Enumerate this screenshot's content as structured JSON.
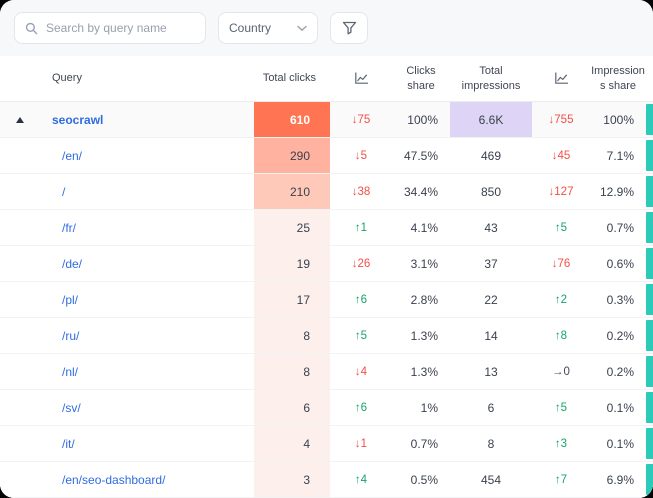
{
  "toolbar": {
    "search_placeholder": "Search by query name",
    "country_label": "Country",
    "search_icon": "magnifier",
    "country_chevron_icon": "chevron-down",
    "filter_icon": "funnel"
  },
  "table": {
    "headers": {
      "query": "Query",
      "total_clicks": "Total clicks",
      "clicks_trend_icon": "chart-icon",
      "clicks_share": "Clicks share",
      "total_impressions": "Total impressions",
      "impressions_trend_icon": "chart-icon",
      "impressions_share": "Impressions share"
    },
    "rows": [
      {
        "query": "seocrawl",
        "parent": true,
        "expanded": true,
        "clicks": "610",
        "heat": "strong",
        "clicks_change": "↓75",
        "clicks_dir": "down",
        "clicks_share": "100%",
        "impressions": "6.6K",
        "impr_highlight": true,
        "impr_change": "↓755",
        "impr_dir": "down",
        "impr_share": "100%"
      },
      {
        "query": "/en/",
        "clicks": "290",
        "heat": "med",
        "clicks_change": "↓5",
        "clicks_dir": "down",
        "clicks_share": "47.5%",
        "impressions": "469",
        "impr_change": "↓45",
        "impr_dir": "down",
        "impr_share": "7.1%"
      },
      {
        "query": "/",
        "clicks": "210",
        "heat": "light",
        "clicks_change": "↓38",
        "clicks_dir": "down",
        "clicks_share": "34.4%",
        "impressions": "850",
        "impr_change": "↓127",
        "impr_dir": "down",
        "impr_share": "12.9%"
      },
      {
        "query": "/fr/",
        "clicks": "25",
        "heat": "faint",
        "clicks_change": "↑1",
        "clicks_dir": "up",
        "clicks_share": "4.1%",
        "impressions": "43",
        "impr_change": "↑5",
        "impr_dir": "up",
        "impr_share": "0.7%"
      },
      {
        "query": "/de/",
        "clicks": "19",
        "heat": "faint",
        "clicks_change": "↓26",
        "clicks_dir": "down",
        "clicks_share": "3.1%",
        "impressions": "37",
        "impr_change": "↓76",
        "impr_dir": "down",
        "impr_share": "0.6%"
      },
      {
        "query": "/pl/",
        "clicks": "17",
        "heat": "faint",
        "clicks_change": "↑6",
        "clicks_dir": "up",
        "clicks_share": "2.8%",
        "impressions": "22",
        "impr_change": "↑2",
        "impr_dir": "up",
        "impr_share": "0.3%"
      },
      {
        "query": "/ru/",
        "clicks": "8",
        "heat": "faint",
        "clicks_change": "↑5",
        "clicks_dir": "up",
        "clicks_share": "1.3%",
        "impressions": "14",
        "impr_change": "↑8",
        "impr_dir": "up",
        "impr_share": "0.2%"
      },
      {
        "query": "/nl/",
        "clicks": "8",
        "heat": "faint",
        "clicks_change": "↓4",
        "clicks_dir": "down",
        "clicks_share": "1.3%",
        "impressions": "13",
        "impr_change": "→0",
        "impr_dir": "flat",
        "impr_share": "0.2%"
      },
      {
        "query": "/sv/",
        "clicks": "6",
        "heat": "faint",
        "clicks_change": "↑6",
        "clicks_dir": "up",
        "clicks_share": "1%",
        "impressions": "6",
        "impr_change": "↑5",
        "impr_dir": "up",
        "impr_share": "0.1%"
      },
      {
        "query": "/it/",
        "clicks": "4",
        "heat": "faint",
        "clicks_change": "↓1",
        "clicks_dir": "down",
        "clicks_share": "0.7%",
        "impressions": "8",
        "impr_change": "↑3",
        "impr_dir": "up",
        "impr_share": "0.1%"
      },
      {
        "query": "/en/seo-dashboard/",
        "clicks": "3",
        "heat": "faint",
        "clicks_change": "↑4",
        "clicks_dir": "up",
        "clicks_share": "0.5%",
        "impressions": "454",
        "impr_change": "↑7",
        "impr_dir": "up",
        "impr_share": "6.9%"
      }
    ]
  },
  "colors": {
    "link_blue": "#2f6ce0",
    "up_green": "#16a56a",
    "down_red": "#f34f46",
    "flat_gray": "#414855",
    "stripe_teal": "#2bcab9",
    "heat_strong": "#ff7452",
    "heat_med": "#ffb2a0",
    "heat_light": "#ffc9b9",
    "heat_faint": "#fdf0ec",
    "impr_highlight": "#ded4f5"
  }
}
